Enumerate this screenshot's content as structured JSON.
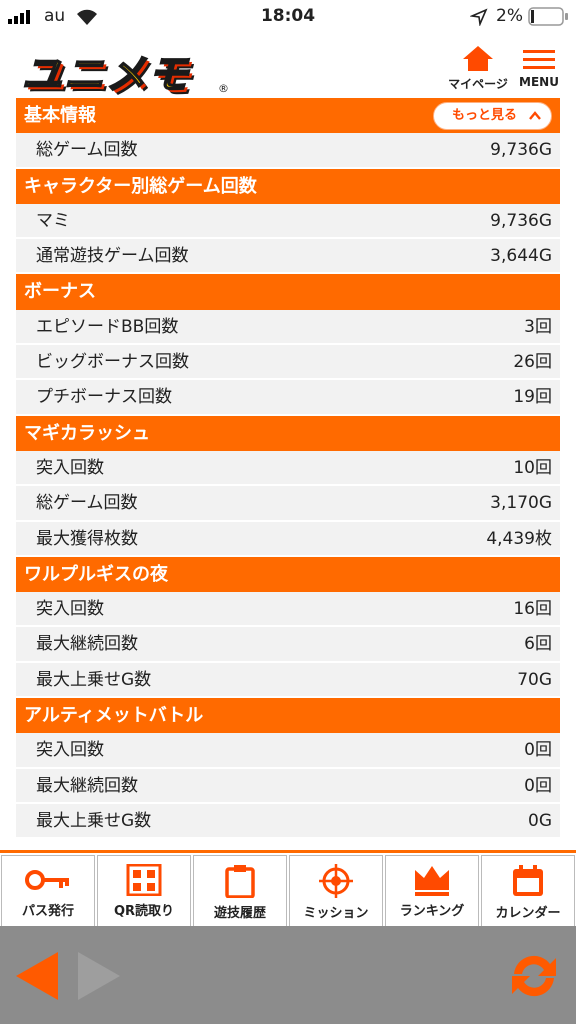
{
  "status_bar": {
    "carrier": "au",
    "time": "18:04",
    "battery": "2%"
  },
  "header": {
    "logo": "ユニメモ",
    "mypage": "マイページ",
    "menu": "MENU"
  },
  "more_button": "もっと見る",
  "sections": [
    {
      "title": "基本情報",
      "rows": [
        [
          "総ゲーム回数",
          "9,736G"
        ]
      ]
    },
    {
      "title": "キャラクター別総ゲーム回数",
      "rows": [
        [
          "マミ",
          "9,736G"
        ],
        [
          "通常遊技ゲーム回数",
          "3,644G"
        ]
      ]
    },
    {
      "title": "ボーナス",
      "rows": [
        [
          "エピソードBB回数",
          "3回"
        ],
        [
          "ビッグボーナス回数",
          "26回"
        ],
        [
          "プチボーナス回数",
          "19回"
        ]
      ]
    },
    {
      "title": "マギカラッシュ",
      "rows": [
        [
          "突入回数",
          "10回"
        ],
        [
          "総ゲーム回数",
          "3,170G"
        ],
        [
          "最大獲得枚数",
          "4,439枚"
        ]
      ]
    },
    {
      "title": "ワルプルギスの夜",
      "rows": [
        [
          "突入回数",
          "16回"
        ],
        [
          "最大継続回数",
          "6回"
        ],
        [
          "最大上乗せG数",
          "70G"
        ]
      ]
    },
    {
      "title": "アルティメットバトル",
      "rows": [
        [
          "突入回数",
          "0回"
        ],
        [
          "最大継続回数",
          "0回"
        ],
        [
          "最大上乗せG数",
          "0G"
        ]
      ]
    }
  ],
  "bottom_nav": [
    "パス発行",
    "QR読取り",
    "遊技履歴",
    "ミッション",
    "ランキング",
    "カレンダー"
  ]
}
